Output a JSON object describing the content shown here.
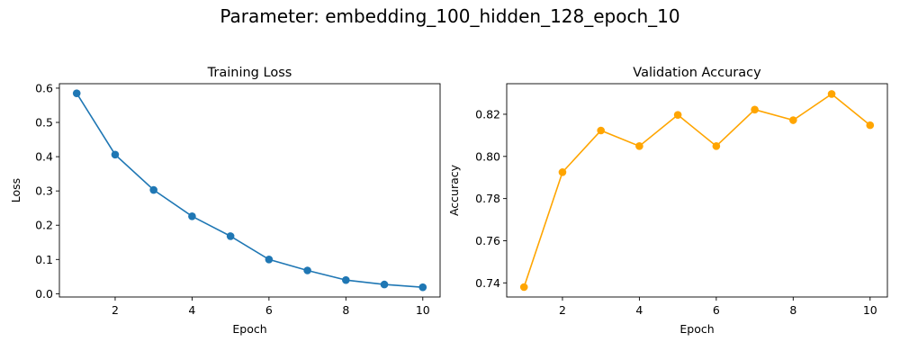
{
  "figure_title": "Parameter: embedding_100_hidden_128_epoch_10",
  "chart_data": [
    {
      "type": "line",
      "title": "Training Loss",
      "xlabel": "Epoch",
      "ylabel": "Loss",
      "xlim": [
        0.55,
        10.45
      ],
      "ylim": [
        -0.0095,
        0.613
      ],
      "xticks": [
        2,
        4,
        6,
        8,
        10
      ],
      "xtick_labels": [
        "2",
        "4",
        "6",
        "8",
        "10"
      ],
      "yticks": [
        0.0,
        0.1,
        0.2,
        0.3,
        0.4,
        0.5,
        0.6
      ],
      "ytick_labels": [
        "0.0",
        "0.1",
        "0.2",
        "0.3",
        "0.4",
        "0.5",
        "0.6"
      ],
      "grid": false,
      "color": "#1f77b4",
      "x": [
        1,
        2,
        3,
        4,
        5,
        6,
        7,
        8,
        9,
        10
      ],
      "y": [
        0.585,
        0.406,
        0.303,
        0.226,
        0.168,
        0.1,
        0.068,
        0.04,
        0.027,
        0.019
      ]
    },
    {
      "type": "line",
      "title": "Validation Accuracy",
      "xlabel": "Epoch",
      "ylabel": "Accuracy",
      "xlim": [
        0.55,
        10.45
      ],
      "ylim": [
        0.7333,
        0.8345
      ],
      "xticks": [
        2,
        4,
        6,
        8,
        10
      ],
      "xtick_labels": [
        "2",
        "4",
        "6",
        "8",
        "10"
      ],
      "yticks": [
        0.74,
        0.76,
        0.78,
        0.8,
        0.82
      ],
      "ytick_labels": [
        "0.74",
        "0.76",
        "0.78",
        "0.80",
        "0.82"
      ],
      "grid": false,
      "color": "#ffa500",
      "x": [
        1,
        2,
        3,
        4,
        5,
        6,
        7,
        8,
        9,
        10
      ],
      "y": [
        0.738,
        0.7925,
        0.8123,
        0.8049,
        0.8197,
        0.8049,
        0.8222,
        0.8172,
        0.8296,
        0.8148
      ]
    }
  ]
}
